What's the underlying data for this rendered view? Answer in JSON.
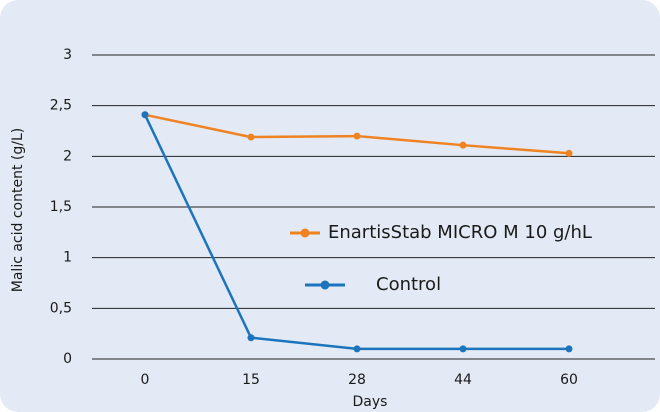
{
  "chart_data": {
    "type": "line",
    "categories": [
      "0",
      "15",
      "28",
      "44",
      "60"
    ],
    "series": [
      {
        "name": "EnartisStab MICRO M 10 g/hL",
        "color": "#ef8322",
        "values": [
          2.41,
          2.19,
          2.2,
          2.11,
          2.03
        ]
      },
      {
        "name": "Control",
        "color": "#1c75bc",
        "values": [
          2.41,
          0.21,
          0.1,
          0.1,
          0.1
        ]
      }
    ],
    "ylim": [
      0,
      3
    ],
    "yticks": [
      0,
      {
        "value": 0.5,
        "label": "0,5"
      },
      1,
      {
        "value": 1.5,
        "label": "1,5"
      },
      2,
      {
        "value": 2.5,
        "label": "2,5"
      },
      3
    ],
    "xlabel": "Days",
    "ylabel": "Malic acid content (g/L)",
    "grid": true,
    "background": "#e3eaf5"
  }
}
